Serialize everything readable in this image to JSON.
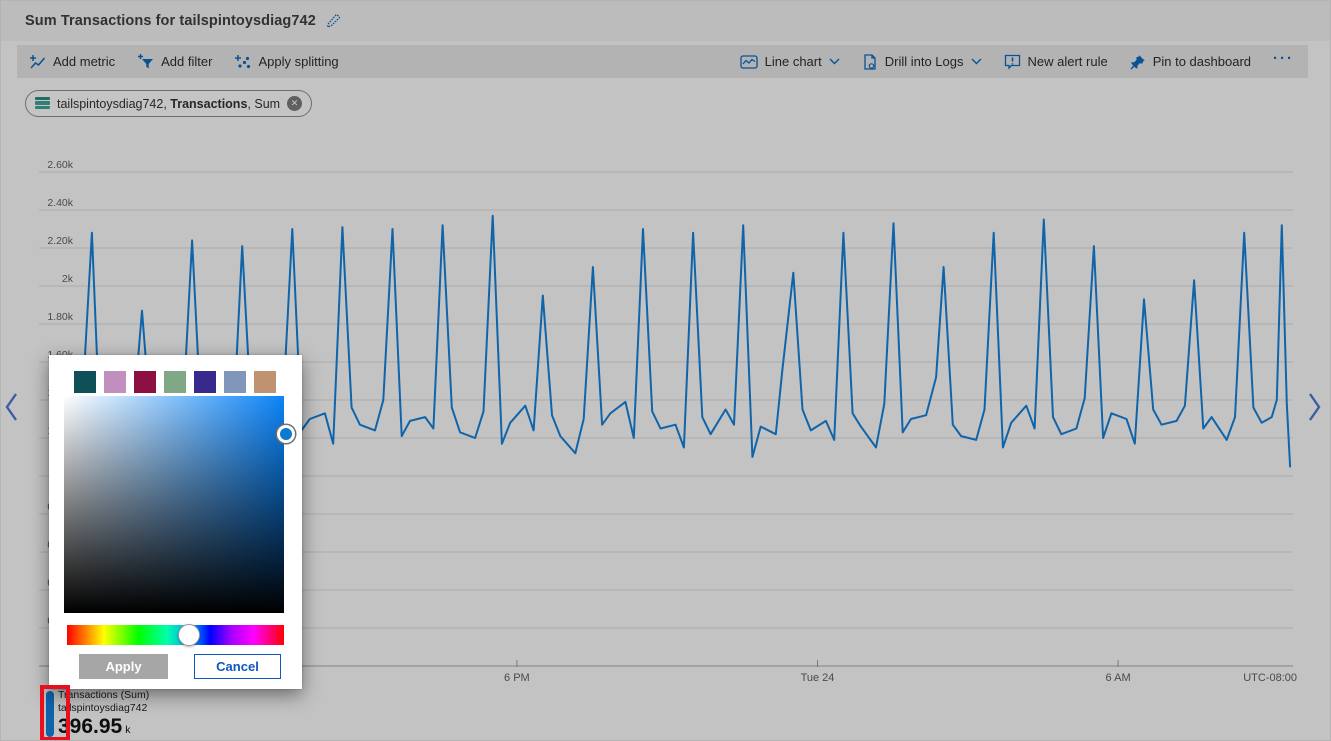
{
  "window": {
    "title": "Sum Transactions for tailspintoysdiag742"
  },
  "toolbar": {
    "left": [
      {
        "label": "Add metric",
        "icon": "add-metric-icon"
      },
      {
        "label": "Add filter",
        "icon": "add-filter-icon"
      },
      {
        "label": "Apply splitting",
        "icon": "apply-splitting-icon"
      }
    ],
    "right": [
      {
        "label": "Line chart",
        "icon": "line-chart-icon",
        "has_dropdown": true
      },
      {
        "label": "Drill into Logs",
        "icon": "drill-into-logs-icon",
        "has_dropdown": true
      },
      {
        "label": "New alert rule",
        "icon": "new-alert-rule-icon",
        "has_dropdown": false
      },
      {
        "label": "Pin to dashboard",
        "icon": "pin-icon",
        "has_dropdown": false
      }
    ],
    "overflow_label": "···"
  },
  "metric_pill": {
    "resource": "tailspintoysdiag742,",
    "metric": "Transactions",
    "aggregation": ", Sum",
    "icon": "storage-account-icon",
    "remove_icon": "close-icon",
    "remove_glyph": "✕"
  },
  "legend": {
    "series": "Transactions (Sum)",
    "resource": "tailspintoysdiag742",
    "value": "396.95",
    "unit": "k",
    "color": "#1481da"
  },
  "annotation": {
    "type": "highlight-box",
    "color": "#e8101d"
  },
  "color_picker": {
    "swatches": [
      "#0e4f58",
      "#c08fbe",
      "#8d1043",
      "#81a884",
      "#38298c",
      "#8096ba",
      "#bf9372"
    ],
    "selected_hue_color": "#0b84f8",
    "apply_label": "Apply",
    "cancel_label": "Cancel"
  },
  "icons": {
    "edit-pencil-icon": "pencil",
    "add-metric-icon": "line chart with plus",
    "add-filter-icon": "funnel with plus",
    "apply-splitting-icon": "scatter points with plus",
    "line-chart-icon": "framed line chart",
    "drill-into-logs-icon": "document with gear",
    "new-alert-rule-icon": "alert square with exclamation",
    "pin-icon": "pushpin",
    "chevron-down-icon": "∨",
    "scroll-left-icon": "❮",
    "scroll-right-icon": "❯",
    "close-icon": "✕"
  },
  "chart_data": {
    "type": "line",
    "title": "Sum Transactions for tailspintoysdiag742",
    "series": [
      {
        "name": "Transactions (Sum)",
        "resource": "tailspintoysdiag742",
        "aggregation": "Sum"
      }
    ],
    "total_display": "396.95 k",
    "line_color": "#1481da",
    "grid": true,
    "legend_position": "bottom-left",
    "x_axis": {
      "unit": "time",
      "minutes_start": 0,
      "minutes_end": 1466,
      "ticks": [
        {
          "m": 540,
          "label": "6 PM"
        },
        {
          "m": 900,
          "label": "Tue 24"
        },
        {
          "m": 1260,
          "label": "6 AM"
        }
      ],
      "corner_label": "UTC-08:00"
    },
    "y_axis": {
      "min": 0,
      "max": 2.6,
      "step": 0.2,
      "labels": [
        {
          "v": 2.6,
          "t": "2.60k"
        },
        {
          "v": 2.4,
          "t": "2.40k"
        },
        {
          "v": 2.2,
          "t": "2.20k"
        },
        {
          "v": 2.0,
          "t": "2k"
        },
        {
          "v": 1.8,
          "t": "1.80k"
        },
        {
          "v": 1.6,
          "t": "1.60k"
        },
        {
          "v": 1.4,
          "t": "1.40k"
        },
        {
          "v": 1.2,
          "t": "1.20k"
        },
        {
          "v": 1.0,
          "t": "1k"
        },
        {
          "v": 0.8,
          "t": "0.80k"
        },
        {
          "v": 0.6,
          "t": "0.60k"
        },
        {
          "v": 0.4,
          "t": "0.40k"
        },
        {
          "v": 0.2,
          "t": "0.20k"
        }
      ]
    },
    "points": [
      [
        0,
        1.5
      ],
      [
        10,
        1.34
      ],
      [
        18,
        1.26
      ],
      [
        31,
        2.28
      ],
      [
        40,
        1.32
      ],
      [
        50,
        1.24
      ],
      [
        70,
        1.37
      ],
      [
        80,
        1.28
      ],
      [
        91,
        1.87
      ],
      [
        102,
        1.25
      ],
      [
        112,
        1.31
      ],
      [
        130,
        1.2
      ],
      [
        140,
        1.33
      ],
      [
        151,
        2.24
      ],
      [
        162,
        1.28
      ],
      [
        172,
        1.22
      ],
      [
        190,
        1.35
      ],
      [
        200,
        1.24
      ],
      [
        211,
        2.21
      ],
      [
        222,
        1.31
      ],
      [
        232,
        1.26
      ],
      [
        250,
        1.23
      ],
      [
        260,
        1.38
      ],
      [
        271,
        2.3
      ],
      [
        282,
        1.24
      ],
      [
        292,
        1.3
      ],
      [
        310,
        1.33
      ],
      [
        320,
        1.17
      ],
      [
        331,
        2.31
      ],
      [
        342,
        1.36
      ],
      [
        352,
        1.27
      ],
      [
        370,
        1.24
      ],
      [
        380,
        1.4
      ],
      [
        391,
        2.3
      ],
      [
        402,
        1.21
      ],
      [
        412,
        1.29
      ],
      [
        430,
        1.31
      ],
      [
        440,
        1.25
      ],
      [
        451,
        2.32
      ],
      [
        462,
        1.36
      ],
      [
        472,
        1.23
      ],
      [
        490,
        1.2
      ],
      [
        500,
        1.34
      ],
      [
        511,
        2.37
      ],
      [
        522,
        1.17
      ],
      [
        532,
        1.28
      ],
      [
        550,
        1.37
      ],
      [
        560,
        1.24
      ],
      [
        571,
        1.95
      ],
      [
        582,
        1.32
      ],
      [
        592,
        1.21
      ],
      [
        610,
        1.12
      ],
      [
        620,
        1.3
      ],
      [
        631,
        2.1
      ],
      [
        642,
        1.27
      ],
      [
        652,
        1.33
      ],
      [
        670,
        1.39
      ],
      [
        680,
        1.2
      ],
      [
        691,
        2.3
      ],
      [
        702,
        1.34
      ],
      [
        712,
        1.25
      ],
      [
        730,
        1.27
      ],
      [
        740,
        1.15
      ],
      [
        751,
        2.28
      ],
      [
        762,
        1.31
      ],
      [
        772,
        1.22
      ],
      [
        790,
        1.35
      ],
      [
        800,
        1.27
      ],
      [
        811,
        2.32
      ],
      [
        822,
        1.1
      ],
      [
        832,
        1.26
      ],
      [
        850,
        1.22
      ],
      [
        858,
        1.56
      ],
      [
        871,
        2.07
      ],
      [
        882,
        1.35
      ],
      [
        892,
        1.24
      ],
      [
        910,
        1.29
      ],
      [
        920,
        1.19
      ],
      [
        931,
        2.28
      ],
      [
        942,
        1.33
      ],
      [
        952,
        1.26
      ],
      [
        970,
        1.15
      ],
      [
        980,
        1.38
      ],
      [
        991,
        2.33
      ],
      [
        1002,
        1.23
      ],
      [
        1012,
        1.3
      ],
      [
        1030,
        1.32
      ],
      [
        1042,
        1.52
      ],
      [
        1051,
        2.1
      ],
      [
        1062,
        1.27
      ],
      [
        1072,
        1.21
      ],
      [
        1090,
        1.19
      ],
      [
        1100,
        1.35
      ],
      [
        1111,
        2.28
      ],
      [
        1122,
        1.15
      ],
      [
        1132,
        1.28
      ],
      [
        1150,
        1.37
      ],
      [
        1160,
        1.25
      ],
      [
        1171,
        2.35
      ],
      [
        1182,
        1.31
      ],
      [
        1192,
        1.22
      ],
      [
        1210,
        1.25
      ],
      [
        1220,
        1.41
      ],
      [
        1231,
        2.21
      ],
      [
        1242,
        1.2
      ],
      [
        1252,
        1.33
      ],
      [
        1270,
        1.3
      ],
      [
        1280,
        1.17
      ],
      [
        1291,
        1.93
      ],
      [
        1302,
        1.35
      ],
      [
        1312,
        1.27
      ],
      [
        1330,
        1.29
      ],
      [
        1340,
        1.37
      ],
      [
        1351,
        2.03
      ],
      [
        1362,
        1.25
      ],
      [
        1372,
        1.31
      ],
      [
        1390,
        1.19
      ],
      [
        1400,
        1.31
      ],
      [
        1411,
        2.28
      ],
      [
        1422,
        1.36
      ],
      [
        1432,
        1.28
      ],
      [
        1444,
        1.31
      ],
      [
        1450,
        1.4
      ],
      [
        1456,
        2.32
      ],
      [
        1462,
        1.38
      ],
      [
        1466,
        1.05
      ]
    ]
  }
}
